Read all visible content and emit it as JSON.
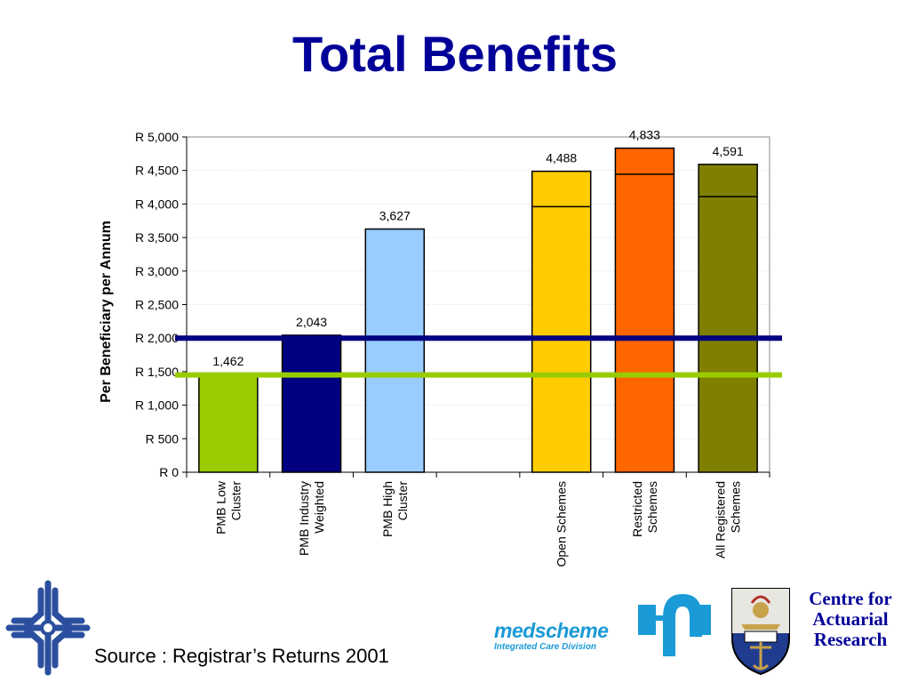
{
  "slide": {
    "title": "Total Benefits",
    "source": "Source : Registrar’s Returns 2001"
  },
  "logos": {
    "medscheme_name": "medscheme",
    "medscheme_subtitle": "Integrated Care Division",
    "car_lines": [
      "Centre for",
      "Actuarial",
      "Research"
    ],
    "left_logo_icon": "cross-pattern-logo-icon",
    "uct_crest_icon": "university-crest-icon"
  },
  "colors": {
    "title": "#000099",
    "reference_line_upper": "#000080",
    "reference_line_lower": "#99cc00"
  },
  "chart_data": {
    "type": "bar",
    "title": "",
    "xlabel": "",
    "ylabel": "Per Beneficiary per Annum",
    "ylim": [
      0,
      5000
    ],
    "yticks": [
      0,
      500,
      1000,
      1500,
      2000,
      2500,
      3000,
      3500,
      4000,
      4500,
      5000
    ],
    "ytick_labels": [
      "R 0",
      "R 500",
      "R 1,000",
      "R 1,500",
      "R 2,000",
      "R 2,500",
      "R 3,000",
      "R 3,500",
      "R 4,000",
      "R 4,500",
      "R 5,000"
    ],
    "grid": true,
    "categories": [
      {
        "label": [
          "PMB Low",
          "Cluster"
        ],
        "value": 1462,
        "value_label": "1,462",
        "color": "#99cc00",
        "inner_line": null
      },
      {
        "label": [
          "PMB Industry",
          "Weighted"
        ],
        "value": 2043,
        "value_label": "2,043",
        "color": "#000080",
        "inner_line": null
      },
      {
        "label": [
          "PMB High",
          "Cluster"
        ],
        "value": 3627,
        "value_label": "3,627",
        "color": "#99ccff",
        "inner_line": null
      },
      {
        "label": [],
        "value": null,
        "value_label": "",
        "color": "",
        "inner_line": null
      },
      {
        "label": [
          "Open Schemes"
        ],
        "value": 4488,
        "value_label": "4,488",
        "color": "#ffcc00",
        "inner_line": 3960
      },
      {
        "label": [
          "Restricted",
          "Schemes"
        ],
        "value": 4833,
        "value_label": "4,833",
        "color": "#ff6600",
        "inner_line": 4445
      },
      {
        "label": [
          "All Registered",
          "Schemes"
        ],
        "value": 4591,
        "value_label": "4,591",
        "color": "#808000",
        "inner_line": 4110
      }
    ],
    "reference_lines": [
      {
        "value": 2000,
        "color": "#000080"
      },
      {
        "value": 1450,
        "color": "#99cc00"
      }
    ]
  }
}
